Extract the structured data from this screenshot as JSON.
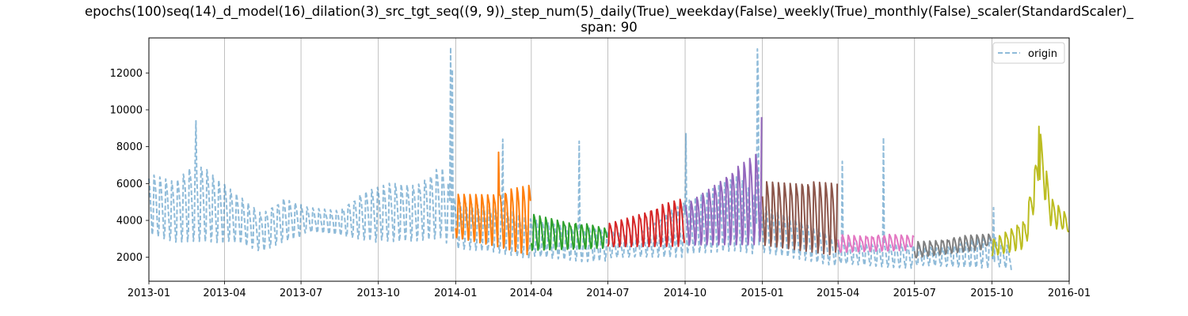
{
  "chart_data": {
    "type": "line",
    "title_line1": "epochs(100)seq(14)_d_model(16)_dilation(3)_src_tgt_seq((9, 9))_step_num(5)_daily(True)_weekday(False)_weekly(True)_monthly(False)_scaler(StandardScaler)_",
    "title_line2": "span: 90",
    "xlabel": "",
    "ylabel": "",
    "x_range": [
      "2013-01-01",
      "2016-01-01"
    ],
    "ylim": [
      700,
      13900
    ],
    "x_ticks": [
      "2013-01",
      "2013-04",
      "2013-07",
      "2013-10",
      "2014-01",
      "2014-04",
      "2014-07",
      "2014-10",
      "2015-01",
      "2015-04",
      "2015-07",
      "2015-10",
      "2016-01"
    ],
    "y_ticks": [
      2000,
      4000,
      6000,
      8000,
      10000,
      12000
    ],
    "x_grid": true,
    "y_grid": false,
    "legend": {
      "position": "top-right",
      "entries": [
        {
          "label": "origin",
          "color": "#1f77b4",
          "style": "dashed"
        }
      ]
    },
    "origin": {
      "name": "origin",
      "color": "#1f77b4",
      "period_days": 7,
      "knots": [
        [
          "2013-01-01",
          6800,
          3200
        ],
        [
          "2013-02-01",
          6400,
          2800
        ],
        [
          "2013-02-26",
          7600,
          2900
        ],
        [
          "2013-03-20",
          6600,
          2900
        ],
        [
          "2013-04-20",
          5500,
          2700
        ],
        [
          "2013-05-15",
          4600,
          2300
        ],
        [
          "2013-06-10",
          5300,
          2900
        ],
        [
          "2013-07-10",
          4800,
          3300
        ],
        [
          "2013-08-15",
          4700,
          3200
        ],
        [
          "2013-09-15",
          5700,
          3000
        ],
        [
          "2013-10-15",
          6300,
          2800
        ],
        [
          "2013-11-15",
          6200,
          2900
        ],
        [
          "2013-12-15",
          7200,
          3100
        ],
        [
          "2014-01-01",
          5200,
          2400
        ],
        [
          "2014-02-15",
          5000,
          2300
        ],
        [
          "2014-04-01",
          4200,
          2000
        ],
        [
          "2014-06-01",
          3700,
          1800
        ],
        [
          "2014-08-01",
          3300,
          2000
        ],
        [
          "2014-10-01",
          5200,
          2100
        ],
        [
          "2014-12-01",
          6800,
          2400
        ],
        [
          "2015-01-01",
          5000,
          2200
        ],
        [
          "2015-02-15",
          4200,
          1900
        ],
        [
          "2015-04-01",
          3000,
          1600
        ],
        [
          "2015-06-01",
          2800,
          1500
        ],
        [
          "2015-08-01",
          2600,
          1500
        ],
        [
          "2015-10-01",
          3300,
          1500
        ],
        [
          "2015-10-25",
          2600,
          1300
        ]
      ],
      "spikes": [
        [
          "2013-02-26",
          9400
        ],
        [
          "2013-12-26",
          13400
        ],
        [
          "2013-12-28",
          12200
        ],
        [
          "2014-02-26",
          8400
        ],
        [
          "2014-05-28",
          8300
        ],
        [
          "2014-10-02",
          8700
        ],
        [
          "2014-12-26",
          13300
        ],
        [
          "2014-12-27",
          11600
        ],
        [
          "2015-04-06",
          7200
        ],
        [
          "2015-05-25",
          8500
        ],
        [
          "2015-10-03",
          4700
        ]
      ]
    },
    "forecast_series": [
      {
        "color": "#ff7f0e",
        "start": "2014-01-01",
        "end": "2014-03-31",
        "knots": [
          [
            "2014-01-01",
            5600,
            3000
          ],
          [
            "2014-02-20",
            5700,
            2600
          ],
          [
            "2014-03-31",
            6200,
            2200
          ]
        ],
        "peaks": [
          [
            "2014-02-21",
            7700
          ]
        ]
      },
      {
        "color": "#2ca02c",
        "start": "2014-04-01",
        "end": "2014-06-30",
        "knots": [
          [
            "2014-04-01",
            4500,
            2300
          ],
          [
            "2014-06-30",
            3600,
            2600
          ]
        ],
        "peaks": []
      },
      {
        "color": "#d62728",
        "start": "2014-07-01",
        "end": "2014-09-30",
        "knots": [
          [
            "2014-07-01",
            3900,
            2500
          ],
          [
            "2014-09-30",
            5400,
            2700
          ]
        ],
        "peaks": []
      },
      {
        "color": "#9467bd",
        "start": "2014-10-01",
        "end": "2014-12-31",
        "knots": [
          [
            "2014-10-01",
            5000,
            2600
          ],
          [
            "2014-12-31",
            8200,
            2800
          ]
        ],
        "peaks": [
          [
            "2014-12-31",
            9600
          ]
        ]
      },
      {
        "color": "#8c564b",
        "start": "2015-01-01",
        "end": "2015-03-31",
        "knots": [
          [
            "2015-01-01",
            6400,
            2600
          ],
          [
            "2015-03-31",
            6300,
            2200
          ]
        ],
        "peaks": []
      },
      {
        "color": "#e377c2",
        "start": "2015-04-01",
        "end": "2015-06-30",
        "knots": [
          [
            "2015-04-01",
            3300,
            2200
          ],
          [
            "2015-06-30",
            3200,
            2500
          ]
        ],
        "peaks": []
      },
      {
        "color": "#7f7f7f",
        "start": "2015-07-01",
        "end": "2015-09-30",
        "knots": [
          [
            "2015-07-01",
            2900,
            1900
          ],
          [
            "2015-09-30",
            3300,
            2600
          ]
        ],
        "peaks": []
      },
      {
        "color": "#bcbd22",
        "start": "2015-10-01",
        "end": "2015-12-31",
        "knots": [
          [
            "2015-10-01",
            3000,
            2000
          ],
          [
            "2015-11-10",
            4200,
            2500
          ],
          [
            "2015-11-28",
            8800,
            6200
          ],
          [
            "2015-12-10",
            5300,
            3800
          ],
          [
            "2015-12-31",
            4300,
            3300
          ]
        ],
        "peaks": [
          [
            "2015-11-26",
            9100
          ]
        ]
      }
    ]
  }
}
